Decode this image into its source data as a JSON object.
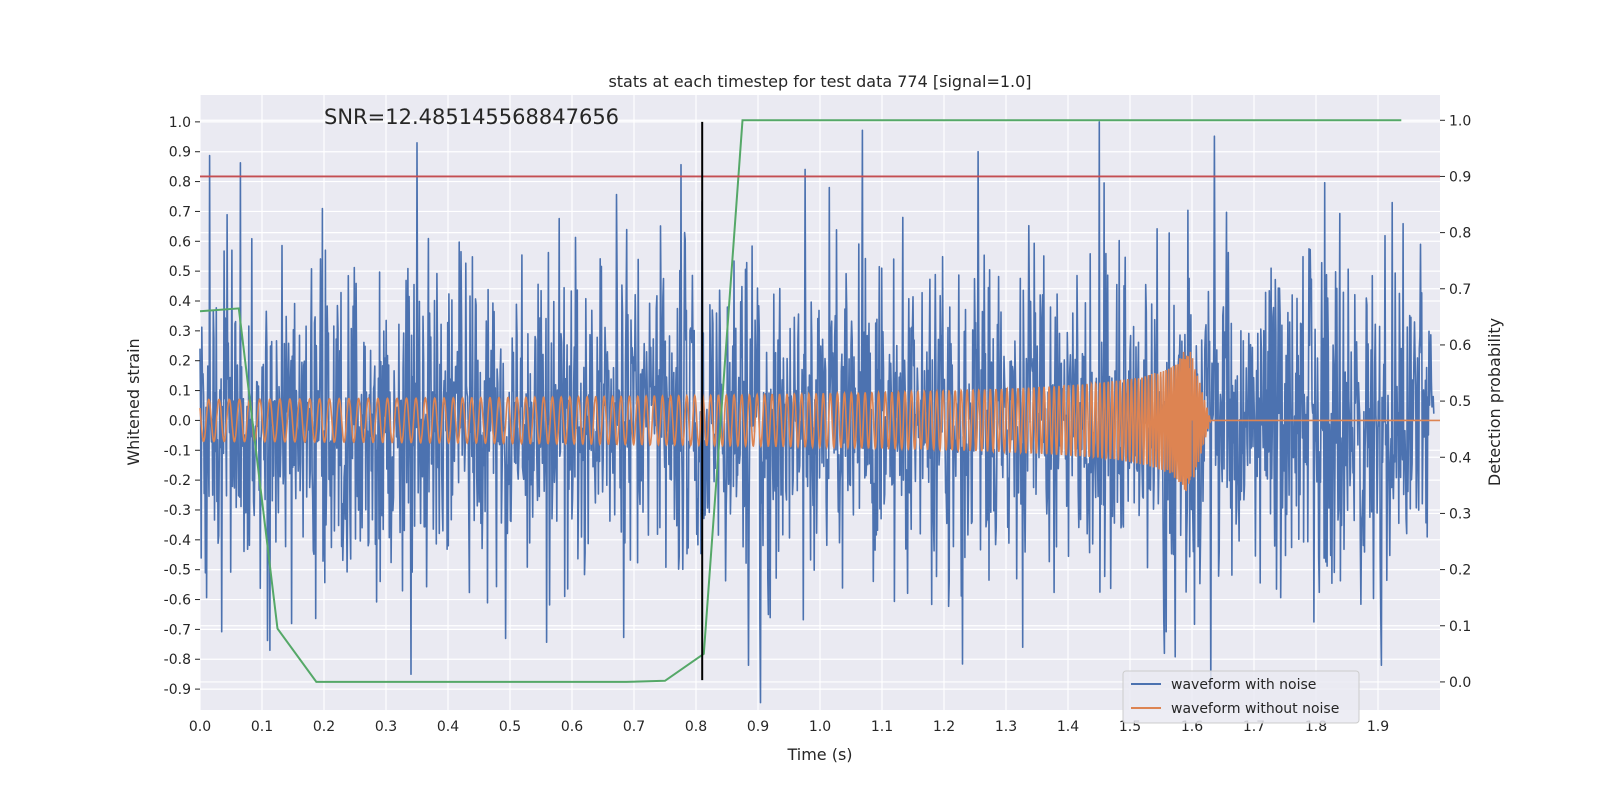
{
  "chart_data": {
    "type": "line",
    "title": "stats at each timestep for test data 774 [signal=1.0]",
    "xlabel": "Time (s)",
    "ylabel": "Whitened strain",
    "ylabel_right": "Detection probability",
    "annotation": "SNR=12.485145568847656",
    "xlim": [
      0.0,
      2.0
    ],
    "ylim": [
      -0.97,
      1.09
    ],
    "ylim_right": [
      -0.05,
      1.045
    ],
    "xticks": [
      "0.0",
      "0.1",
      "0.2",
      "0.3",
      "0.4",
      "0.5",
      "0.6",
      "0.7",
      "0.8",
      "0.9",
      "1.0",
      "1.1",
      "1.2",
      "1.3",
      "1.4",
      "1.5",
      "1.6",
      "1.7",
      "1.8",
      "1.9"
    ],
    "yticks": [
      "1.0",
      "0.9",
      "0.8",
      "0.7",
      "0.6",
      "0.5",
      "0.4",
      "0.3",
      "0.2",
      "0.1",
      "0.0",
      "-0.1",
      "-0.2",
      "-0.3",
      "-0.4",
      "-0.5",
      "-0.6",
      "-0.7",
      "-0.8",
      "-0.9"
    ],
    "yticks_right": [
      "1.0",
      "0.9",
      "0.8",
      "0.7",
      "0.6",
      "0.5",
      "0.4",
      "0.3",
      "0.2",
      "0.1",
      "0.0"
    ],
    "grid": true,
    "legend_position": "bottom-right",
    "colors": {
      "noise": "#4c72b0",
      "clean": "#dd8452",
      "probability": "#55a868",
      "threshold": "#c44e52",
      "marker": "#000000",
      "axes_bg": "#eaeaf2",
      "grid": "#ffffff"
    },
    "series": [
      {
        "name": "waveform with noise",
        "axis": "left",
        "style": "noise",
        "amplitude": 0.3,
        "points": 2048
      },
      {
        "name": "waveform without noise",
        "axis": "left",
        "style": "chirp",
        "merger_time": 1.6,
        "peak": 0.36
      }
    ],
    "probability_curve": {
      "axis": "right",
      "x": [
        0.0,
        0.0625,
        0.125,
        0.1875,
        0.25,
        0.3125,
        0.375,
        0.4375,
        0.5,
        0.5625,
        0.625,
        0.6875,
        0.75,
        0.8125,
        0.875,
        0.9375,
        1.0,
        1.0625,
        1.125,
        1.1875,
        1.25,
        1.3125,
        1.375,
        1.4375,
        1.5,
        1.5625,
        1.625,
        1.6875,
        1.75,
        1.8125,
        1.875,
        1.9375
      ],
      "y": [
        0.66,
        0.665,
        0.095,
        0.0,
        0.0,
        0.0,
        0.0,
        0.0,
        0.0,
        0.0,
        0.0,
        0.0,
        0.002,
        0.05,
        1.0,
        1.0,
        1.0,
        1.0,
        1.0,
        1.0,
        1.0,
        1.0,
        1.0,
        1.0,
        1.0,
        1.0,
        1.0,
        1.0,
        1.0,
        1.0,
        1.0,
        1.0
      ]
    },
    "threshold_line": {
      "axis": "right",
      "y": 0.9
    },
    "marker_line": {
      "x": 0.81,
      "y_range": [
        -0.87,
        1.0
      ]
    },
    "noise_spikes": [
      {
        "x": 0.35,
        "y": 0.93
      },
      {
        "x": 0.34,
        "y": -0.85
      },
      {
        "x": 1.255,
        "y": 0.9
      },
      {
        "x": 1.45,
        "y": 1.0
      },
      {
        "x": 1.63,
        "y": -0.9
      },
      {
        "x": 1.555,
        "y": -0.78
      },
      {
        "x": 1.923,
        "y": 0.73
      },
      {
        "x": 0.113,
        "y": -0.77
      },
      {
        "x": 0.885,
        "y": -0.82
      },
      {
        "x": 1.015,
        "y": 0.78
      },
      {
        "x": 1.905,
        "y": -0.82
      },
      {
        "x": 0.052,
        "y": 0.57
      }
    ]
  }
}
